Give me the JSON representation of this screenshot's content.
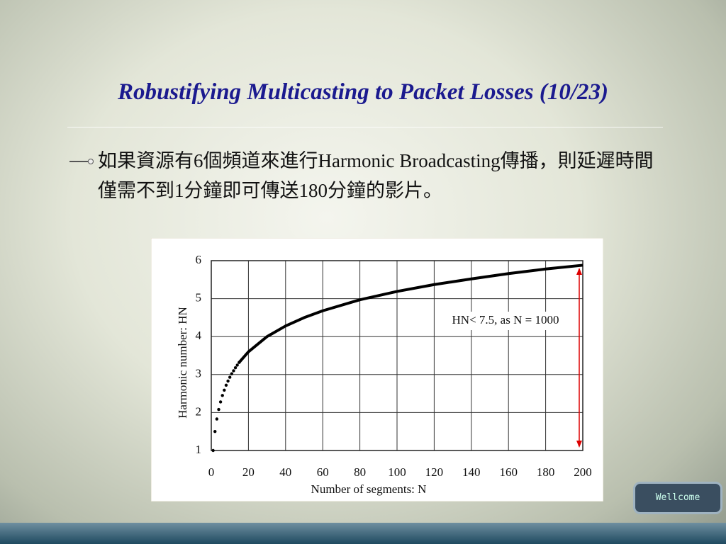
{
  "slide": {
    "title": "Robustifying Multicasting to Packet Losses (10/23)",
    "bullet": "如果資源有6個頻道來進行Harmonic Broadcasting傳播，則延遲時間僅需不到1分鐘即可傳送180分鐘的影片。",
    "badge": "Wellcome"
  },
  "chart_data": {
    "type": "line",
    "xlabel": "Number of segments: N",
    "ylabel": "Harmonic number: HN",
    "annotation": "HN< 7.5, as N = 1000",
    "xlim": [
      0,
      200
    ],
    "ylim": [
      1,
      6
    ],
    "xticks": [
      0,
      20,
      40,
      60,
      80,
      100,
      120,
      140,
      160,
      180,
      200
    ],
    "yticks": [
      1,
      2,
      3,
      4,
      5,
      6
    ],
    "grid": true,
    "series": [
      {
        "style": "dots",
        "color": "#000000",
        "x": [
          1,
          2,
          3,
          4,
          5,
          6,
          7,
          8,
          9,
          10,
          11,
          12,
          13,
          14,
          15
        ],
        "values": [
          1,
          1.5,
          1.83,
          2.08,
          2.28,
          2.45,
          2.59,
          2.72,
          2.83,
          2.93,
          3.02,
          3.1,
          3.18,
          3.25,
          3.32
        ]
      },
      {
        "style": "line",
        "color": "#000000",
        "x": [
          15,
          20,
          30,
          40,
          50,
          60,
          80,
          100,
          120,
          140,
          160,
          180,
          200
        ],
        "values": [
          3.32,
          3.6,
          4,
          4.28,
          4.5,
          4.68,
          4.97,
          5.19,
          5.37,
          5.52,
          5.66,
          5.78,
          5.88
        ]
      }
    ]
  }
}
